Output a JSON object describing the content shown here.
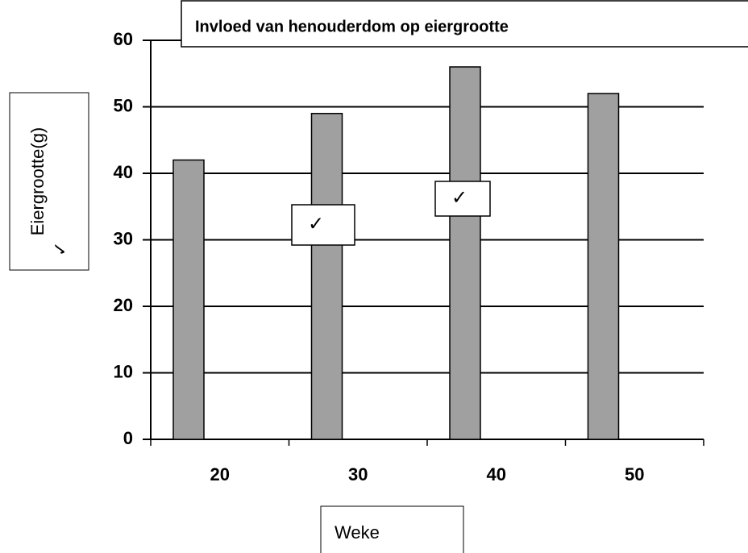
{
  "chart_data": {
    "type": "bar",
    "title": "Invloed van henouderdom op eiergrootte",
    "categories": [
      "20",
      "30",
      "40",
      "50"
    ],
    "values": [
      42,
      49,
      56,
      52
    ],
    "color": "#a0a0a0",
    "ylim": [
      0,
      60
    ],
    "yticks": [
      0,
      10,
      20,
      30,
      40,
      50,
      60
    ],
    "grid": true,
    "ylabel": "Eiergrootte(g)",
    "ylabel_note": "✓",
    "xlabel": "Weke",
    "annotations": [
      "✓",
      "✓"
    ]
  }
}
